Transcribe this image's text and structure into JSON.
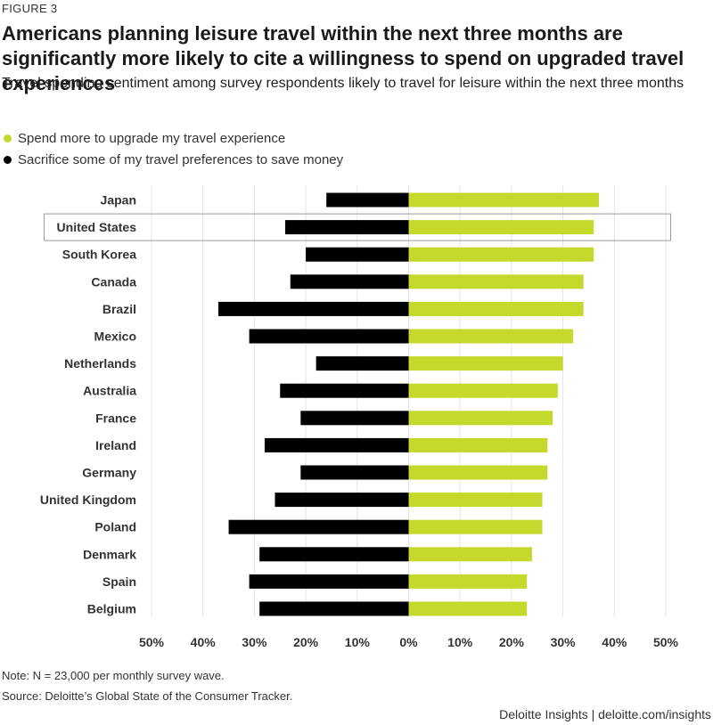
{
  "figure_label": "FIGURE 3",
  "title": "Americans planning leisure travel within the next three months are significantly more likely to cite a willingness to spend on upgraded travel experiences",
  "subtitle": "Travel spending sentiment among survey respondents likely to travel for leisure within the next three months",
  "legend": [
    {
      "label": "Spend more to upgrade my travel experience",
      "color": "#c5d92d"
    },
    {
      "label": "Sacrifice some of my travel preferences to save money",
      "color": "#000000"
    }
  ],
  "note": "Note: N = 23,000 per monthly survey wave.",
  "source": "Source: Deloitte’s Global State of the Consumer Tracker.",
  "brand": "Deloitte Insights | deloitte.com/insights",
  "chart_data": {
    "type": "bar",
    "orientation": "horizontal-diverging",
    "highlighted_category": "United States",
    "categories": [
      "Japan",
      "United States",
      "South Korea",
      "Canada",
      "Brazil",
      "Mexico",
      "Netherlands",
      "Australia",
      "France",
      "Ireland",
      "Germany",
      "United Kingdom",
      "Poland",
      "Denmark",
      "Spain",
      "Belgium"
    ],
    "series": [
      {
        "name": "Spend more to upgrade my travel experience",
        "color": "#c5d92d",
        "values": [
          37,
          36,
          36,
          34,
          34,
          32,
          30,
          29,
          28,
          27,
          27,
          26,
          26,
          24,
          23,
          23
        ]
      },
      {
        "name": "Sacrifice some of my travel preferences to save money",
        "color": "#000000",
        "values": [
          16,
          24,
          20,
          23,
          37,
          31,
          18,
          25,
          21,
          28,
          21,
          26,
          35,
          29,
          31,
          29
        ]
      }
    ],
    "xlim": [
      -50,
      50
    ],
    "xticks": [
      "50%",
      "40%",
      "30%",
      "20%",
      "10%",
      "0%",
      "10%",
      "20%",
      "30%",
      "40%",
      "50%"
    ],
    "grid": true
  }
}
